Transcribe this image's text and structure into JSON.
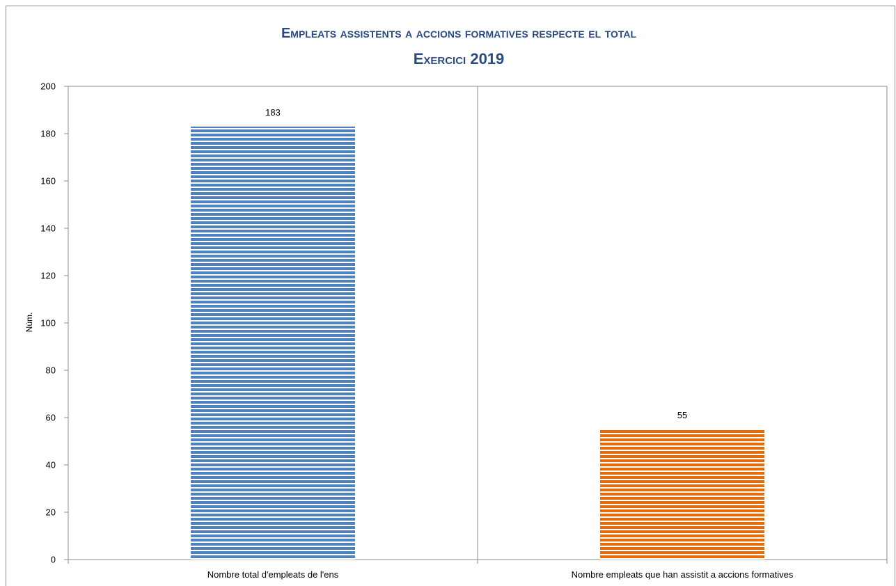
{
  "chart_data": {
    "type": "bar",
    "title_lines": [
      "Empleats assistents a accions formatives respecte el total",
      "Exercici 2019"
    ],
    "xlabel": "",
    "ylabel": "Núm.",
    "ylim": [
      0,
      200
    ],
    "yticks": [
      0,
      20,
      40,
      60,
      80,
      100,
      120,
      140,
      160,
      180,
      200
    ],
    "categories": [
      "Nombre total d'empleats de l'ens",
      "Nombre empleats que han assistit a accions formatives"
    ],
    "values": [
      183,
      55
    ],
    "data_labels": [
      "183",
      "55"
    ],
    "colors": [
      "#4f81bd",
      "#e46c0a"
    ],
    "bar_pattern": "horizontal-stripes",
    "grid": false,
    "legend": "none"
  }
}
